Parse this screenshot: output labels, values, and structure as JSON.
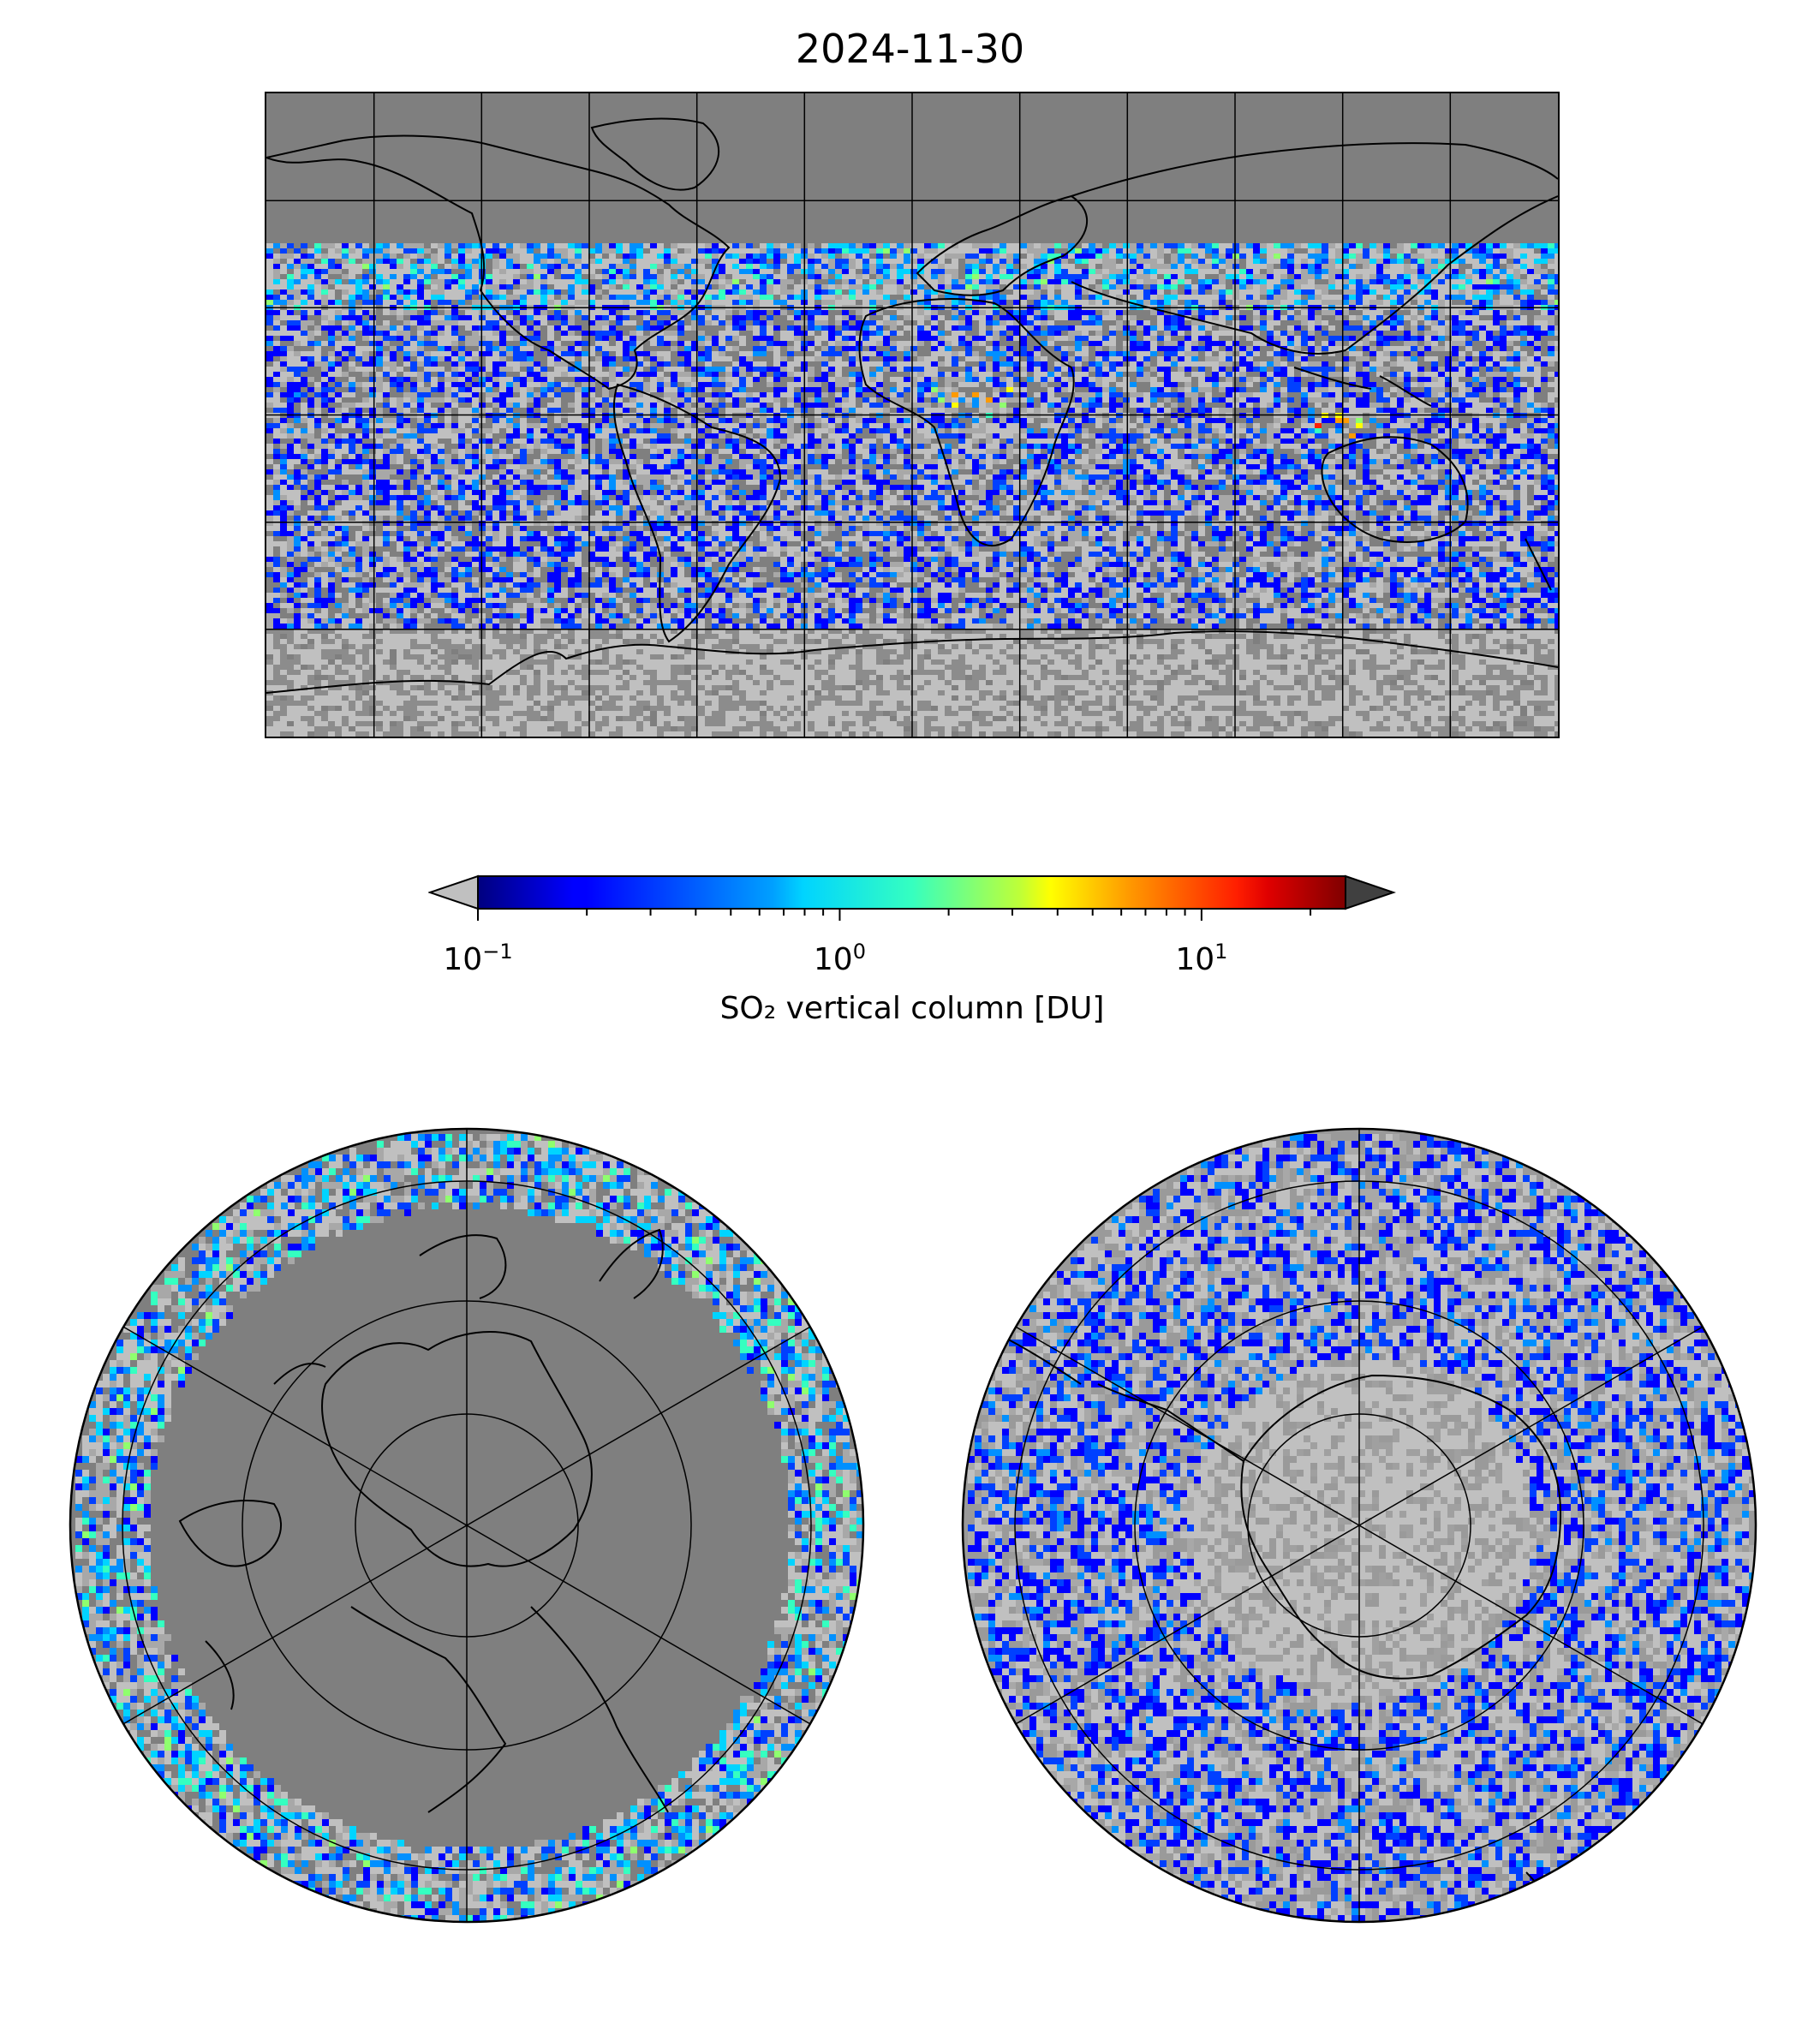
{
  "title": "2024-11-30",
  "colorbar": {
    "label": "SO₂ vertical column [DU]",
    "scale": "log",
    "range": [
      0.1,
      25
    ],
    "colormap": "jet",
    "extend": "both",
    "under_color": "#c0c0c0",
    "over_color": "#404040",
    "ticks": [
      {
        "base": "10",
        "exp": "−1",
        "value": 0.1
      },
      {
        "base": "10",
        "exp": "0",
        "value": 1
      },
      {
        "base": "10",
        "exp": "1",
        "value": 10
      }
    ]
  },
  "panels": {
    "global": {
      "projection": "equirectangular",
      "gridlines": "30° spacing",
      "background": "#7f7f7f"
    },
    "north_polar": {
      "projection": "north polar stereographic",
      "background": "#7f7f7f"
    },
    "south_polar": {
      "projection": "south polar stereographic",
      "background": "#9a9a9a"
    }
  },
  "colors": {
    "no_data": "#7f7f7f",
    "below_range": "#c0c0c0",
    "coastline": "#000000",
    "gridline": "#000000"
  },
  "notable_features": [
    "enhanced SO2 band across northern mid-latitudes",
    "SO2 hotspot over central Africa",
    "SO2 hotspot near Indonesia"
  ]
}
